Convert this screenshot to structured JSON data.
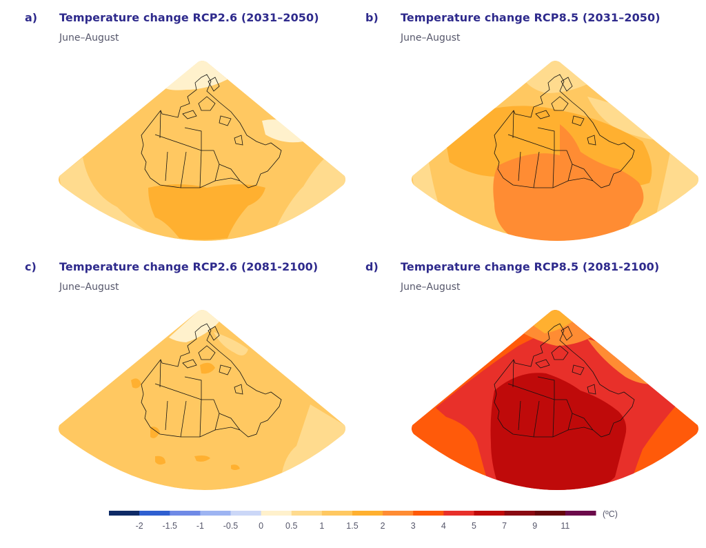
{
  "chart_data": [
    {
      "type": "heatmap",
      "panel": "a)",
      "title": "Temperature change RCP2.6 (2031–2050)",
      "subtitle": "June–August",
      "projection": "conic fan over Canada",
      "regions": [
        {
          "name": "background",
          "bin": "1-1.5"
        },
        {
          "name": "arctic-ocean-north",
          "bin": "0-0.5"
        },
        {
          "name": "baffin-bay",
          "bin": "0-0.5"
        },
        {
          "name": "western-ocean-edge",
          "bin": "0.5-1"
        },
        {
          "name": "eastern-atlantic",
          "bin": "0.5-1"
        },
        {
          "name": "central-usa-southern-canada",
          "bin": "1.5-2"
        }
      ]
    },
    {
      "type": "heatmap",
      "panel": "b)",
      "title": "Temperature change RCP8.5 (2031–2050)",
      "subtitle": "June–August",
      "projection": "conic fan over Canada",
      "regions": [
        {
          "name": "background",
          "bin": "1-1.5"
        },
        {
          "name": "arctic-ocean-north",
          "bin": "0.5-1"
        },
        {
          "name": "northern-canada",
          "bin": "1.5-2"
        },
        {
          "name": "central-north-america",
          "bin": "2-3"
        },
        {
          "name": "eastern-atlantic",
          "bin": "0.5-1"
        }
      ]
    },
    {
      "type": "heatmap",
      "panel": "c)",
      "title": "Temperature change RCP2.6 (2081-2100)",
      "subtitle": "June–August",
      "projection": "conic fan over Canada",
      "regions": [
        {
          "name": "background",
          "bin": "1-1.5"
        },
        {
          "name": "arctic-ocean-north",
          "bin": "0-0.5"
        },
        {
          "name": "eastern-atlantic",
          "bin": "0.5-1"
        },
        {
          "name": "scattered-patches",
          "bin": "1.5-2"
        }
      ]
    },
    {
      "type": "heatmap",
      "panel": "d)",
      "title": "Temperature change RCP8.5 (2081-2100)",
      "subtitle": "June–August",
      "projection": "conic fan over Canada",
      "regions": [
        {
          "name": "ocean-background",
          "bin": "3-4"
        },
        {
          "name": "arctic-ocean-north",
          "bin": "1.5-2"
        },
        {
          "name": "high-arctic",
          "bin": "2-3"
        },
        {
          "name": "canada-margin",
          "bin": "4-5"
        },
        {
          "name": "continental-interior",
          "bin": "5-7"
        }
      ]
    }
  ],
  "panels": [
    {
      "letter": "a)",
      "title": "Temperature change RCP2.6 (2031–2050)",
      "subtitle": "June–August"
    },
    {
      "letter": "b)",
      "title": "Temperature change RCP8.5 (2031–2050)",
      "subtitle": "June–August"
    },
    {
      "letter": "c)",
      "title": "Temperature change RCP2.6 (2081-2100)",
      "subtitle": "June–August"
    },
    {
      "letter": "d)",
      "title": "Temperature change RCP8.5 (2081-2100)",
      "subtitle": "June–August"
    }
  ],
  "colorbar": {
    "unit": "(ºC)",
    "ticks": [
      "-2",
      "-1.5",
      "-1",
      "-0.5",
      "0",
      "0.5",
      "1",
      "1.5",
      "2",
      "3",
      "4",
      "5",
      "7",
      "9",
      "11"
    ],
    "bins": [
      {
        "range": "< -2",
        "color": "#0e2a66"
      },
      {
        "range": "-2 to -1.5",
        "color": "#2f5fd0"
      },
      {
        "range": "-1.5 to -1",
        "color": "#6f8ae6"
      },
      {
        "range": "-1 to -0.5",
        "color": "#9db4f2"
      },
      {
        "range": "-0.5 to 0",
        "color": "#cbd7f7"
      },
      {
        "range": "0 to 0.5",
        "color": "#fff1cc"
      },
      {
        "range": "0.5 to 1",
        "color": "#ffdb8e"
      },
      {
        "range": "1 to 1.5",
        "color": "#ffc861"
      },
      {
        "range": "1.5 to 2",
        "color": "#ffb030"
      },
      {
        "range": "2 to 3",
        "color": "#ff8c33"
      },
      {
        "range": "3 to 4",
        "color": "#ff5a0a"
      },
      {
        "range": "4 to 5",
        "color": "#e8302a"
      },
      {
        "range": "5 to 7",
        "color": "#bf0a0a"
      },
      {
        "range": "7 to 9",
        "color": "#8a0a12"
      },
      {
        "range": "9 to 11",
        "color": "#66060c"
      },
      {
        "range": "> 11",
        "color": "#6b0a4a"
      }
    ]
  }
}
